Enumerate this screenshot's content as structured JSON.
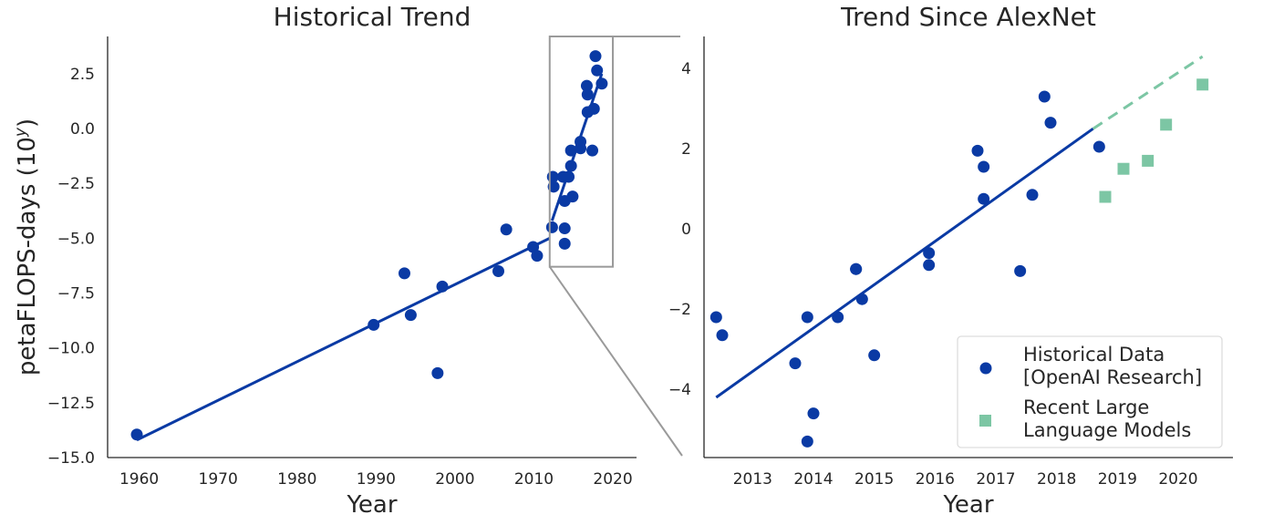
{
  "colors": {
    "historical": "#0a3aa4",
    "llm": "#7cc6a4",
    "axis": "#262626",
    "inset": "#9a9a9a",
    "legend_border": "#dddddd"
  },
  "chart_data": [
    {
      "type": "scatter",
      "title": "Historical Trend",
      "xlabel": "Year",
      "ylabel_main": "petaFLOPS-days (10",
      "ylabel_sup": "y",
      "ylabel_end": ")",
      "xlim": [
        1956,
        2023
      ],
      "ylim": [
        -15,
        4.2
      ],
      "xticks": [
        1960,
        1970,
        1980,
        1990,
        2000,
        2010,
        2020
      ],
      "yticks": [
        2.5,
        0.0,
        -2.5,
        -5.0,
        -7.5,
        -10.0,
        -12.5,
        -15.0
      ],
      "ytick_labels": [
        "2.5",
        "0.0",
        "−2.5",
        "−5.0",
        "−7.5",
        "−10.0",
        "−12.5",
        "−15.0"
      ],
      "points": [
        [
          1959.7,
          -13.95
        ],
        [
          1989.7,
          -8.95
        ],
        [
          1993.6,
          -6.6
        ],
        [
          1994.4,
          -8.5
        ],
        [
          1997.8,
          -11.15
        ],
        [
          1998.4,
          -7.2
        ],
        [
          2005.5,
          -6.5
        ],
        [
          2006.5,
          -4.6
        ],
        [
          2009.9,
          -5.4
        ],
        [
          2010.4,
          -5.8
        ],
        [
          2012.3,
          -4.5
        ],
        [
          2012.4,
          -2.2
        ],
        [
          2012.5,
          -2.65
        ],
        [
          2013.7,
          -2.2
        ],
        [
          2013.9,
          -3.3
        ],
        [
          2013.9,
          -4.55
        ],
        [
          2013.9,
          -5.25
        ],
        [
          2014.4,
          -2.2
        ],
        [
          2014.7,
          -1.0
        ],
        [
          2014.7,
          -1.7
        ],
        [
          2014.9,
          -3.1
        ],
        [
          2015.9,
          -0.6
        ],
        [
          2015.9,
          -0.9
        ],
        [
          2016.7,
          1.95
        ],
        [
          2016.8,
          0.75
        ],
        [
          2016.8,
          1.55
        ],
        [
          2017.4,
          -1.0
        ],
        [
          2017.6,
          0.9
        ],
        [
          2017.8,
          3.3
        ],
        [
          2018.0,
          2.65
        ],
        [
          2018.6,
          2.05
        ]
      ],
      "trend_lines": [
        {
          "x": [
            1959.7,
            2012.0
          ],
          "y": [
            -14.2,
            -5.0
          ]
        },
        {
          "x": [
            2012.3,
            2018.6
          ],
          "y": [
            -4.2,
            2.5
          ]
        }
      ],
      "inset_box": {
        "x": [
          2012.0,
          2020.0
        ],
        "y": [
          -6.3,
          4.2
        ]
      }
    },
    {
      "type": "scatter",
      "title": "Trend Since AlexNet",
      "xlabel": "Year",
      "xlim": [
        2012.2,
        2020.9
      ],
      "ylim": [
        -5.7,
        4.8
      ],
      "xticks": [
        2013,
        2014,
        2015,
        2016,
        2017,
        2018,
        2019,
        2020
      ],
      "yticks": [
        4,
        2,
        0,
        -2,
        -4
      ],
      "ytick_labels": [
        "4",
        "2",
        "0",
        "−2",
        "−4"
      ],
      "series": [
        {
          "name": "Historical Data\n[OpenAI Research]",
          "marker": "circle",
          "points": [
            [
              2012.4,
              -2.2
            ],
            [
              2012.5,
              -2.65
            ],
            [
              2013.7,
              -3.35
            ],
            [
              2013.9,
              -2.2
            ],
            [
              2013.9,
              -5.3
            ],
            [
              2014.0,
              -4.6
            ],
            [
              2014.4,
              -2.2
            ],
            [
              2014.7,
              -1.0
            ],
            [
              2014.7,
              -1.0
            ],
            [
              2014.8,
              -1.75
            ],
            [
              2015.0,
              -3.15
            ],
            [
              2015.9,
              -0.6
            ],
            [
              2015.9,
              -0.9
            ],
            [
              2016.7,
              1.95
            ],
            [
              2016.8,
              0.75
            ],
            [
              2016.8,
              1.55
            ],
            [
              2017.4,
              -1.05
            ],
            [
              2017.6,
              0.85
            ],
            [
              2017.8,
              3.3
            ],
            [
              2017.9,
              2.65
            ],
            [
              2018.7,
              2.05
            ]
          ]
        },
        {
          "name": "Recent Large\nLanguage Models",
          "marker": "square",
          "points": [
            [
              2018.8,
              0.8
            ],
            [
              2019.1,
              1.5
            ],
            [
              2019.5,
              1.7
            ],
            [
              2019.8,
              2.6
            ],
            [
              2020.4,
              3.6
            ]
          ]
        }
      ],
      "trend_line": {
        "x": [
          2012.4,
          2018.6
        ],
        "y": [
          -4.2,
          2.5
        ]
      },
      "trend_extension": {
        "x": [
          2018.6,
          2020.4
        ],
        "y": [
          2.5,
          4.3
        ]
      },
      "legend_position": "bottom-right"
    }
  ]
}
